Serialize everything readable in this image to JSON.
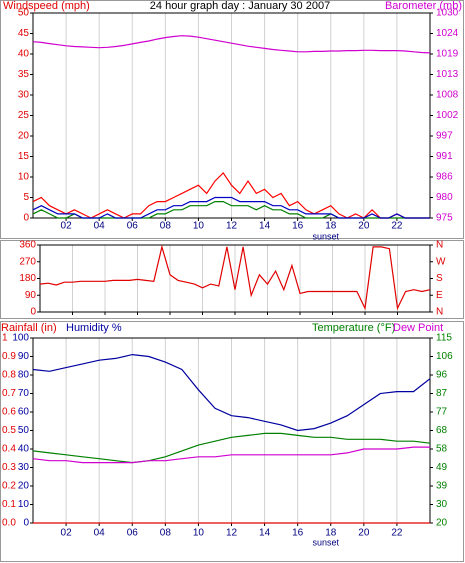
{
  "chart_data": [
    {
      "type": "line",
      "title": "24 hour graph day : January 30 2007",
      "ylabel": "Windspeed (mph)",
      "y2label": "Barometer (mb)",
      "ycolor": "#e00000",
      "y2color": "#d000d0",
      "xcolor": "#000080",
      "grid": true,
      "x": [
        0,
        0.5,
        1,
        1.5,
        2,
        2.5,
        3,
        3.5,
        4,
        4.5,
        5,
        5.5,
        6,
        6.5,
        7,
        7.5,
        8,
        8.5,
        9,
        9.5,
        10,
        10.5,
        11,
        11.5,
        12,
        12.5,
        13,
        13.5,
        14,
        14.5,
        15,
        15.5,
        16,
        16.5,
        17,
        17.5,
        18,
        18.5,
        19,
        19.5,
        20,
        20.5,
        21,
        21.5,
        22,
        22.5,
        23,
        23.5,
        24
      ],
      "xlim": [
        0,
        24
      ],
      "xticks": [
        {
          "value": 2,
          "label": "02"
        },
        {
          "value": 4,
          "label": "04"
        },
        {
          "value": 6,
          "label": "06"
        },
        {
          "value": 8,
          "label": "08"
        },
        {
          "value": 10,
          "label": "10"
        },
        {
          "value": 12,
          "label": "12"
        },
        {
          "value": 14,
          "label": "14"
        },
        {
          "value": 16,
          "label": "16"
        },
        {
          "value": 18,
          "label": "18"
        },
        {
          "value": 20,
          "label": "20"
        },
        {
          "value": 22,
          "label": "22"
        }
      ],
      "ylim": [
        0,
        50
      ],
      "yticks": [
        0,
        5,
        10,
        15,
        20,
        25,
        30,
        35,
        40,
        45,
        50
      ],
      "y2lim": [
        975,
        1030
      ],
      "y2ticks": [
        975,
        {
          "value": 980.5,
          "label": "980"
        },
        986,
        {
          "value": 991.5,
          "label": "991"
        },
        997,
        {
          "value": 1002.5,
          "label": "1002"
        },
        1008,
        {
          "value": 1013.5,
          "label": "1013"
        },
        1019,
        {
          "value": 1024.5,
          "label": "1024"
        },
        1030
      ],
      "annotation": {
        "text": "sunset",
        "x": 17.7
      },
      "series": [
        {
          "color": "#ff0000",
          "values": [
            4,
            5,
            3,
            2,
            1,
            2,
            1,
            0,
            1,
            2,
            1,
            0,
            1,
            1,
            3,
            4,
            4,
            5,
            6,
            7,
            8,
            6,
            9,
            11,
            8,
            6,
            9,
            6,
            7,
            5,
            6,
            3,
            4,
            2,
            1,
            2,
            3,
            1,
            0,
            1,
            0,
            2,
            0,
            0,
            1,
            0,
            0,
            0,
            0
          ]
        },
        {
          "color": "#008000",
          "values": [
            1,
            2,
            1,
            0,
            0,
            1,
            0,
            0,
            0,
            0,
            0,
            0,
            0,
            0,
            0,
            1,
            1,
            2,
            2,
            3,
            3,
            3,
            4,
            4,
            3,
            3,
            3,
            2,
            3,
            2,
            2,
            1,
            1,
            0,
            0,
            0,
            1,
            0,
            0,
            0,
            0,
            0,
            0,
            0,
            0,
            0,
            0,
            0,
            0
          ]
        },
        {
          "color": "#0000c0",
          "values": [
            2,
            3,
            2,
            1,
            1,
            1,
            0,
            0,
            0,
            1,
            0,
            0,
            0,
            0,
            1,
            2,
            2,
            3,
            3,
            4,
            4,
            4,
            5,
            5,
            5,
            4,
            4,
            4,
            4,
            3,
            3,
            2,
            2,
            1,
            1,
            1,
            1,
            0,
            0,
            0,
            0,
            1,
            0,
            0,
            1,
            0,
            0,
            0,
            0
          ]
        },
        {
          "color": "#d000d0",
          "axis": "y2",
          "values": [
            1022.3,
            1022.1,
            1021.8,
            1021.5,
            1021.2,
            1021,
            1020.9,
            1020.8,
            1020.7,
            1020.8,
            1021,
            1021.3,
            1021.7,
            1022.1,
            1022.5,
            1023,
            1023.4,
            1023.7,
            1023.9,
            1023.8,
            1023.5,
            1023.1,
            1022.7,
            1022.3,
            1021.9,
            1021.5,
            1021.1,
            1020.8,
            1020.5,
            1020.2,
            1020,
            1019.8,
            1019.6,
            1019.6,
            1019.7,
            1019.7,
            1019.8,
            1019.8,
            1019.9,
            1019.9,
            1020,
            1020,
            1019.9,
            1019.9,
            1019.9,
            1019.8,
            1019.6,
            1019.4,
            1019.3
          ]
        }
      ]
    },
    {
      "type": "line",
      "ycolor": "#e00000",
      "y2color": "#e00000",
      "grid": true,
      "x": [
        0,
        0.5,
        1,
        1.5,
        2,
        2.5,
        3,
        3.5,
        4,
        4.5,
        5,
        5.5,
        6,
        6.5,
        7,
        7.5,
        8,
        8.5,
        9,
        9.5,
        10,
        10.5,
        11,
        11.5,
        12,
        12.5,
        13,
        13.5,
        14,
        14.5,
        15,
        15.5,
        16,
        16.5,
        17,
        17.5,
        18,
        18.5,
        19,
        19.5,
        20,
        20.5,
        21,
        21.5,
        22,
        22.5,
        23,
        23.5,
        24
      ],
      "xlim": [
        0,
        24
      ],
      "xticks": [
        2,
        4,
        6,
        8,
        10,
        12,
        14,
        16,
        18,
        20,
        22
      ],
      "ylim": [
        0,
        360
      ],
      "yticks": [
        0,
        90,
        180,
        270,
        360
      ],
      "y2lim": [
        0,
        360
      ],
      "y2ticks": [
        {
          "value": 0,
          "label": "N"
        },
        {
          "value": 90,
          "label": "E"
        },
        {
          "value": 180,
          "label": "S"
        },
        {
          "value": 270,
          "label": "W"
        },
        {
          "value": 360,
          "label": "N"
        }
      ],
      "series": [
        {
          "color": "#e00000",
          "values": [
            150,
            155,
            145,
            160,
            160,
            165,
            165,
            165,
            165,
            170,
            170,
            170,
            175,
            170,
            165,
            350,
            200,
            170,
            160,
            150,
            130,
            150,
            140,
            350,
            120,
            350,
            90,
            200,
            150,
            220,
            120,
            250,
            100,
            110,
            110,
            110,
            110,
            110,
            110,
            110,
            20,
            350,
            350,
            340,
            20,
            110,
            120,
            110,
            120
          ]
        }
      ]
    },
    {
      "type": "line",
      "ycolor": "#0000a0",
      "y2color": "#008000",
      "y3color": "#e00000",
      "xcolor": "#000080",
      "grid": true,
      "header_labels": [
        {
          "text": "Rainfall (in)",
          "color": "#e00000"
        },
        {
          "text": "Humidity %",
          "color": "#0000a0"
        },
        {
          "text": "Temperature (°F)",
          "color": "#008000"
        },
        {
          "text": "Dew Point",
          "color": "#d000d0"
        }
      ],
      "x": [
        0,
        1,
        2,
        3,
        4,
        5,
        6,
        7,
        8,
        9,
        10,
        11,
        12,
        13,
        14,
        15,
        16,
        17,
        18,
        19,
        20,
        21,
        22,
        23,
        24
      ],
      "xlim": [
        0,
        24
      ],
      "xticks": [
        {
          "value": 2,
          "label": "02"
        },
        {
          "value": 4,
          "label": "04"
        },
        {
          "value": 6,
          "label": "06"
        },
        {
          "value": 8,
          "label": "08"
        },
        {
          "value": 10,
          "label": "10"
        },
        {
          "value": 12,
          "label": "12"
        },
        {
          "value": 14,
          "label": "14"
        },
        {
          "value": 16,
          "label": "16"
        },
        {
          "value": 18,
          "label": "18"
        },
        {
          "value": 20,
          "label": "20"
        },
        {
          "value": 22,
          "label": "22"
        }
      ],
      "ylim": [
        0,
        100
      ],
      "yticks": [
        0,
        10,
        20,
        30,
        40,
        50,
        60,
        70,
        80,
        90,
        100
      ],
      "y2lim": [
        20,
        115
      ],
      "y2ticks": [
        20,
        {
          "value": 29.5,
          "label": "30"
        },
        39,
        {
          "value": 48.5,
          "label": "49"
        },
        58,
        {
          "value": 67.5,
          "label": "68"
        },
        77,
        {
          "value": 86.5,
          "label": "87"
        },
        96,
        {
          "value": 105.5,
          "label": "106"
        },
        115
      ],
      "y3lim": [
        0,
        1
      ],
      "y3ticks": [
        {
          "value": 0,
          "label": "0.0"
        },
        0.1,
        0.2,
        0.3,
        0.4,
        0.5,
        0.6,
        0.7,
        0.8,
        0.9,
        1
      ],
      "annotation": {
        "text": "sunset",
        "x": 17.7
      },
      "series": [
        {
          "color": "#e00000",
          "axis": "y3",
          "values": [
            0,
            0,
            0,
            0,
            0,
            0,
            0,
            0,
            0,
            0,
            0,
            0,
            0,
            0,
            0,
            0,
            0,
            0,
            0,
            0,
            0,
            0,
            0,
            0,
            0
          ]
        },
        {
          "color": "#0000a0",
          "values": [
            83,
            82,
            84,
            86,
            88,
            89,
            91,
            90,
            87,
            83,
            72,
            62,
            58,
            57,
            55,
            53,
            50,
            51,
            54,
            58,
            64,
            70,
            71,
            71,
            78
          ]
        },
        {
          "color": "#008000",
          "axis": "y2",
          "values": [
            57,
            56,
            55,
            54,
            53,
            52,
            51,
            52,
            54,
            57,
            60,
            62,
            64,
            65,
            66,
            66,
            65,
            64,
            64,
            63,
            63,
            63,
            62,
            62,
            61
          ]
        },
        {
          "color": "#d000d0",
          "axis": "y2",
          "values": [
            53,
            52,
            52,
            51,
            51,
            51,
            51,
            52,
            52,
            53,
            54,
            54,
            55,
            55,
            55,
            55,
            55,
            55,
            55,
            56,
            58,
            58,
            58,
            59,
            59
          ]
        }
      ]
    }
  ]
}
